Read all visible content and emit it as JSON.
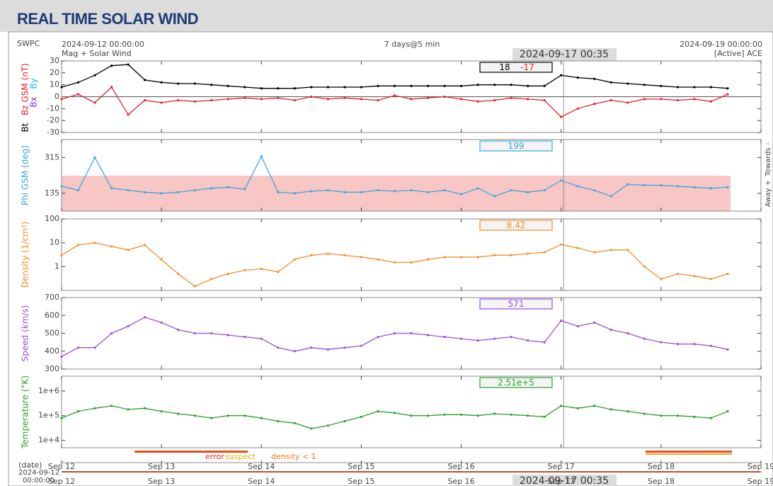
{
  "page": {
    "title": "REAL TIME SOLAR WIND",
    "source": "SWPC",
    "start": "2024-09-12 00:00:00",
    "subtitle": "Mag + Solar Wind",
    "span": "7 days@5 min",
    "cursor_time": "2024-09-17 00:35",
    "end": "2024-09-19 00:00:00",
    "spacecraft": "[Active] ACE",
    "date_label": "(date)",
    "start_date": "2024-09-12",
    "start_clock": "00:00:00",
    "status_labels": [
      "error",
      "suspect",
      "density < 1"
    ]
  },
  "time_axis": {
    "xlim": [
      "2024-09-12T00:00",
      "2024-09-19T00:00"
    ],
    "xticks": [
      {
        "value": "2024-09-12T00:00",
        "label": "Sep 12"
      },
      {
        "value": "2024-09-13T00:00",
        "label": "Sep 13"
      },
      {
        "value": "2024-09-14T00:00",
        "label": "Sep 14"
      },
      {
        "value": "2024-09-15T00:00",
        "label": "Sep 15"
      },
      {
        "value": "2024-09-16T00:00",
        "label": "Sep 16"
      },
      {
        "value": "2024-09-17T00:00",
        "label": "Sep 17"
      },
      {
        "value": "2024-09-18T00:00",
        "label": "Sep 18"
      },
      {
        "value": "2024-09-19T00:00",
        "label": "Sep 19"
      }
    ]
  },
  "chart_data": [
    {
      "type": "line",
      "x": [
        "2024-09-12T00:00",
        "2024-09-12T04:00",
        "2024-09-12T08:00",
        "2024-09-12T12:00",
        "2024-09-12T16:00",
        "2024-09-12T20:00",
        "2024-09-13T00:00",
        "2024-09-13T04:00",
        "2024-09-13T08:00",
        "2024-09-13T12:00",
        "2024-09-13T16:00",
        "2024-09-13T20:00",
        "2024-09-14T00:00",
        "2024-09-14T04:00",
        "2024-09-14T08:00",
        "2024-09-14T12:00",
        "2024-09-14T16:00",
        "2024-09-14T20:00",
        "2024-09-15T00:00",
        "2024-09-15T04:00",
        "2024-09-15T08:00",
        "2024-09-15T12:00",
        "2024-09-15T16:00",
        "2024-09-15T20:00",
        "2024-09-16T00:00",
        "2024-09-16T04:00",
        "2024-09-16T08:00",
        "2024-09-16T12:00",
        "2024-09-16T16:00",
        "2024-09-16T20:00",
        "2024-09-17T00:00",
        "2024-09-17T04:00",
        "2024-09-17T08:00",
        "2024-09-17T12:00",
        "2024-09-17T16:00",
        "2024-09-17T20:00",
        "2024-09-18T00:00",
        "2024-09-18T04:00",
        "2024-09-18T08:00",
        "2024-09-18T12:00",
        "2024-09-18T16:00"
      ],
      "series": [
        {
          "name": "Bt",
          "color": "#000000",
          "values": [
            8,
            12,
            18,
            26,
            27,
            14,
            12,
            11,
            11,
            10,
            9,
            8,
            7,
            7,
            7,
            8,
            8,
            8,
            8,
            9,
            9,
            9,
            9,
            9,
            9,
            10,
            10,
            10,
            9,
            9,
            18,
            16,
            15,
            12,
            11,
            10,
            9,
            8,
            8,
            8,
            7
          ]
        },
        {
          "name": "Bz GSM (nT)",
          "color": "#e0202a",
          "values": [
            -2,
            2,
            -5,
            8,
            -15,
            -3,
            -5,
            -3,
            -4,
            -3,
            -2,
            -1,
            -2,
            -1,
            -3,
            0,
            -2,
            -1,
            -2,
            -3,
            1,
            -2,
            -1,
            0,
            -2,
            -4,
            -3,
            -1,
            -2,
            -3,
            -17,
            -10,
            -6,
            -3,
            -5,
            -2,
            -2,
            -3,
            -2,
            -4,
            2
          ]
        }
      ],
      "extra_labels": [
        {
          "text": "By",
          "color": "#22b5e8"
        },
        {
          "text": "Bx",
          "color": "#8a2be2"
        }
      ],
      "ylim": [
        -30,
        30
      ],
      "yticks": [
        -30,
        -20,
        -10,
        0,
        10,
        20,
        30
      ],
      "zero_line": true,
      "log": false,
      "readout": [
        18,
        -17
      ],
      "readout_color": "#000000"
    },
    {
      "type": "line",
      "x": [
        "2024-09-12T00:00",
        "2024-09-12T04:00",
        "2024-09-12T08:00",
        "2024-09-12T12:00",
        "2024-09-12T16:00",
        "2024-09-12T20:00",
        "2024-09-13T00:00",
        "2024-09-13T04:00",
        "2024-09-13T08:00",
        "2024-09-13T12:00",
        "2024-09-13T16:00",
        "2024-09-13T20:00",
        "2024-09-14T00:00",
        "2024-09-14T04:00",
        "2024-09-14T08:00",
        "2024-09-14T12:00",
        "2024-09-14T16:00",
        "2024-09-14T20:00",
        "2024-09-15T00:00",
        "2024-09-15T04:00",
        "2024-09-15T08:00",
        "2024-09-15T12:00",
        "2024-09-15T16:00",
        "2024-09-15T20:00",
        "2024-09-16T00:00",
        "2024-09-16T04:00",
        "2024-09-16T08:00",
        "2024-09-16T12:00",
        "2024-09-16T16:00",
        "2024-09-16T20:00",
        "2024-09-17T00:00",
        "2024-09-17T04:00",
        "2024-09-17T08:00",
        "2024-09-17T12:00",
        "2024-09-17T16:00",
        "2024-09-17T20:00",
        "2024-09-18T00:00",
        "2024-09-18T04:00",
        "2024-09-18T08:00",
        "2024-09-18T12:00",
        "2024-09-18T16:00"
      ],
      "series": [
        {
          "name": "Phi GSM (deg)",
          "color": "#3aa7dd",
          "values": [
            170,
            150,
            315,
            160,
            150,
            140,
            135,
            140,
            150,
            160,
            165,
            155,
            320,
            140,
            135,
            145,
            150,
            140,
            140,
            150,
            145,
            150,
            140,
            150,
            130,
            160,
            120,
            150,
            140,
            150,
            199,
            170,
            150,
            120,
            180,
            175,
            175,
            170,
            165,
            160,
            165
          ]
        }
      ],
      "side_labels": [
        "Towards -",
        "Away +"
      ],
      "ylim": [
        45,
        405
      ],
      "yticks": [
        135,
        315
      ],
      "log": false,
      "readout": [
        199
      ],
      "readout_color": "#3aa7dd"
    },
    {
      "type": "line",
      "x": [
        "2024-09-12T00:00",
        "2024-09-12T04:00",
        "2024-09-12T08:00",
        "2024-09-12T12:00",
        "2024-09-12T16:00",
        "2024-09-12T20:00",
        "2024-09-13T00:00",
        "2024-09-13T04:00",
        "2024-09-13T08:00",
        "2024-09-13T12:00",
        "2024-09-13T16:00",
        "2024-09-13T20:00",
        "2024-09-14T00:00",
        "2024-09-14T04:00",
        "2024-09-14T08:00",
        "2024-09-14T12:00",
        "2024-09-14T16:00",
        "2024-09-14T20:00",
        "2024-09-15T00:00",
        "2024-09-15T04:00",
        "2024-09-15T08:00",
        "2024-09-15T12:00",
        "2024-09-15T16:00",
        "2024-09-15T20:00",
        "2024-09-16T00:00",
        "2024-09-16T04:00",
        "2024-09-16T08:00",
        "2024-09-16T12:00",
        "2024-09-16T16:00",
        "2024-09-16T20:00",
        "2024-09-17T00:00",
        "2024-09-17T04:00",
        "2024-09-17T08:00",
        "2024-09-17T12:00",
        "2024-09-17T16:00",
        "2024-09-17T20:00",
        "2024-09-18T00:00",
        "2024-09-18T04:00",
        "2024-09-18T08:00",
        "2024-09-18T12:00",
        "2024-09-18T16:00"
      ],
      "series": [
        {
          "name": "Density (1/cm³)",
          "color": "#f28e2b",
          "values": [
            3,
            8,
            10,
            7,
            5,
            8,
            2,
            0.5,
            0.15,
            0.3,
            0.5,
            0.7,
            0.8,
            0.6,
            2,
            3,
            3.5,
            3,
            2.5,
            2,
            1.5,
            1.5,
            2,
            2.5,
            2.5,
            2.5,
            3,
            3,
            3.5,
            4,
            8.42,
            6,
            4,
            5,
            5,
            1,
            0.3,
            0.5,
            0.4,
            0.3,
            0.5
          ]
        }
      ],
      "ylim": [
        0.1,
        100
      ],
      "yticks": [
        1,
        10,
        100
      ],
      "log": true,
      "readout": [
        8.42
      ],
      "readout_color": "#f28e2b"
    },
    {
      "type": "line",
      "x": [
        "2024-09-12T00:00",
        "2024-09-12T04:00",
        "2024-09-12T08:00",
        "2024-09-12T12:00",
        "2024-09-12T16:00",
        "2024-09-12T20:00",
        "2024-09-13T00:00",
        "2024-09-13T04:00",
        "2024-09-13T08:00",
        "2024-09-13T12:00",
        "2024-09-13T16:00",
        "2024-09-13T20:00",
        "2024-09-14T00:00",
        "2024-09-14T04:00",
        "2024-09-14T08:00",
        "2024-09-14T12:00",
        "2024-09-14T16:00",
        "2024-09-14T20:00",
        "2024-09-15T00:00",
        "2024-09-15T04:00",
        "2024-09-15T08:00",
        "2024-09-15T12:00",
        "2024-09-15T16:00",
        "2024-09-15T20:00",
        "2024-09-16T00:00",
        "2024-09-16T04:00",
        "2024-09-16T08:00",
        "2024-09-16T12:00",
        "2024-09-16T16:00",
        "2024-09-16T20:00",
        "2024-09-17T00:00",
        "2024-09-17T04:00",
        "2024-09-17T08:00",
        "2024-09-17T12:00",
        "2024-09-17T16:00",
        "2024-09-17T20:00",
        "2024-09-18T00:00",
        "2024-09-18T04:00",
        "2024-09-18T08:00",
        "2024-09-18T12:00",
        "2024-09-18T16:00"
      ],
      "series": [
        {
          "name": "Speed (km/s)",
          "color": "#9b4fd6",
          "values": [
            370,
            420,
            420,
            500,
            540,
            590,
            560,
            520,
            500,
            500,
            490,
            480,
            470,
            420,
            400,
            420,
            410,
            420,
            430,
            480,
            500,
            500,
            490,
            480,
            470,
            460,
            470,
            480,
            460,
            450,
            571,
            540,
            560,
            520,
            500,
            470,
            450,
            440,
            440,
            430,
            410
          ]
        }
      ],
      "ylim": [
        300,
        700
      ],
      "yticks": [
        300,
        400,
        500,
        600,
        700
      ],
      "log": false,
      "readout": [
        571
      ],
      "readout_color": "#9b4fd6"
    },
    {
      "type": "line",
      "x": [
        "2024-09-12T00:00",
        "2024-09-12T04:00",
        "2024-09-12T08:00",
        "2024-09-12T12:00",
        "2024-09-12T16:00",
        "2024-09-12T20:00",
        "2024-09-13T00:00",
        "2024-09-13T04:00",
        "2024-09-13T08:00",
        "2024-09-13T12:00",
        "2024-09-13T16:00",
        "2024-09-13T20:00",
        "2024-09-14T00:00",
        "2024-09-14T04:00",
        "2024-09-14T08:00",
        "2024-09-14T12:00",
        "2024-09-14T16:00",
        "2024-09-14T20:00",
        "2024-09-15T00:00",
        "2024-09-15T04:00",
        "2024-09-15T08:00",
        "2024-09-15T12:00",
        "2024-09-15T16:00",
        "2024-09-15T20:00",
        "2024-09-16T00:00",
        "2024-09-16T04:00",
        "2024-09-16T08:00",
        "2024-09-16T12:00",
        "2024-09-16T16:00",
        "2024-09-16T20:00",
        "2024-09-17T00:00",
        "2024-09-17T04:00",
        "2024-09-17T08:00",
        "2024-09-17T12:00",
        "2024-09-17T16:00",
        "2024-09-17T20:00",
        "2024-09-18T00:00",
        "2024-09-18T04:00",
        "2024-09-18T08:00",
        "2024-09-18T12:00",
        "2024-09-18T16:00"
      ],
      "series": [
        {
          "name": "Temperature (°K)",
          "color": "#2ca02c",
          "values": [
            80000,
            150000,
            200000,
            250000,
            180000,
            200000,
            150000,
            120000,
            100000,
            80000,
            100000,
            100000,
            80000,
            60000,
            50000,
            30000,
            40000,
            60000,
            90000,
            150000,
            130000,
            100000,
            100000,
            110000,
            110000,
            100000,
            120000,
            110000,
            100000,
            90000,
            251000,
            200000,
            250000,
            180000,
            150000,
            120000,
            100000,
            100000,
            90000,
            80000,
            150000
          ]
        }
      ],
      "ylim": [
        5000,
        4000000
      ],
      "yticks": [
        {
          "value": 10000,
          "label": "1e+4"
        },
        {
          "value": 100000,
          "label": "1e+5"
        },
        {
          "value": 1000000,
          "label": "1e+6"
        }
      ],
      "log": true,
      "readout": [
        251000
      ],
      "readout_labels": [
        "2.51e+5"
      ],
      "readout_color": "#2ca02c"
    }
  ]
}
